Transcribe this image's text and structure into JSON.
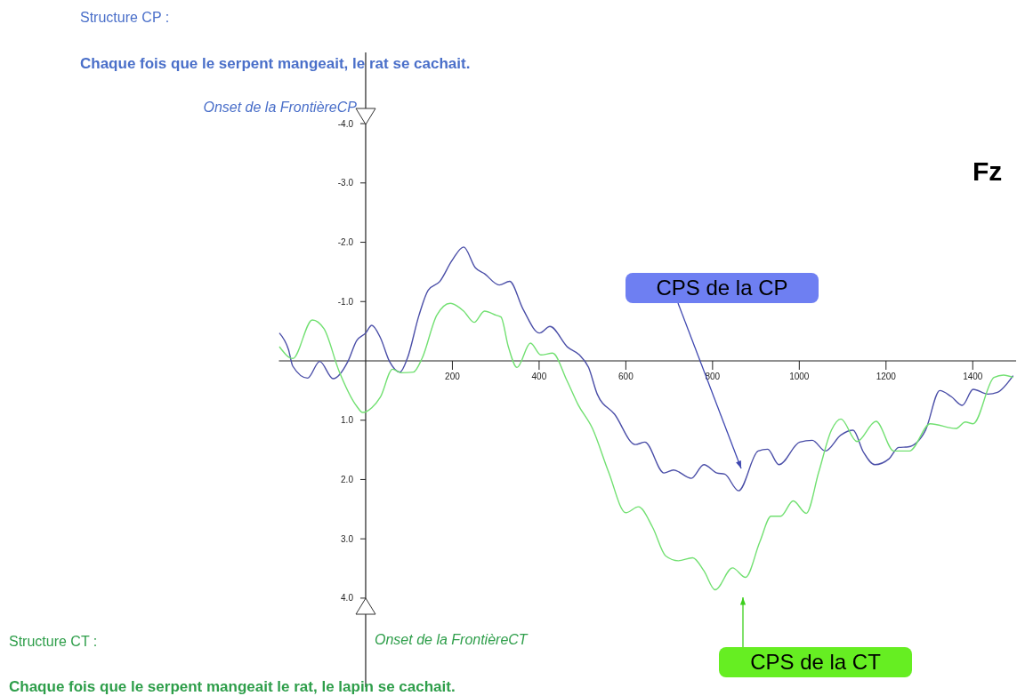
{
  "chart_data": {
    "type": "line",
    "title": "Structure CP :",
    "subtitle": "Chaque fois que le serpent mangeait, le rat se cachait.",
    "xlim": [
      -200,
      1500
    ],
    "xticks": [
      200,
      400,
      600,
      800,
      1000,
      1200,
      1400
    ],
    "ylim": [
      5.5,
      -5.2
    ],
    "yticks": [
      {
        "value": -4,
        "label": "-4.0"
      },
      {
        "value": -3,
        "label": "-3.0"
      },
      {
        "value": -2,
        "label": "-2.0"
      },
      {
        "value": -1,
        "label": "-1.0"
      },
      {
        "value": 1,
        "label": "1.0"
      },
      {
        "value": 2,
        "label": "2.0"
      },
      {
        "value": 3,
        "label": "3.0"
      },
      {
        "value": 4,
        "label": "4.0"
      }
    ],
    "grid": false,
    "series": [
      {
        "color": "#4b4fa8",
        "x": [
          -199,
          -178,
          -168,
          -134,
          -106,
          -75,
          -41,
          -21,
          0,
          14,
          34,
          55,
          79,
          96,
          123,
          144,
          171,
          199,
          226,
          253,
          274,
          308,
          332,
          363,
          401,
          425,
          466,
          493,
          514,
          534,
          574,
          622,
          644,
          688,
          710,
          751,
          780,
          810,
          828,
          860,
          905,
          927,
          953,
          1001,
          1030,
          1060,
          1096,
          1124,
          1148,
          1174,
          1207,
          1229,
          1251,
          1291,
          1324,
          1350,
          1376,
          1401,
          1435,
          1457,
          1493
        ],
        "values": [
          -0.47,
          -0.19,
          0.09,
          0.29,
          0.01,
          0.3,
          0.01,
          -0.34,
          -0.47,
          -0.6,
          -0.39,
          0.01,
          0.19,
          -0.04,
          -0.77,
          -1.19,
          -1.34,
          -1.69,
          -1.92,
          -1.57,
          -1.47,
          -1.28,
          -1.34,
          -0.87,
          -0.47,
          -0.58,
          -0.23,
          -0.1,
          0.11,
          0.56,
          0.9,
          1.41,
          1.37,
          1.89,
          1.84,
          1.98,
          1.75,
          1.89,
          1.91,
          2.19,
          1.52,
          1.49,
          1.75,
          1.37,
          1.34,
          1.52,
          1.25,
          1.17,
          1.54,
          1.75,
          1.65,
          1.46,
          1.45,
          1.17,
          0.5,
          0.6,
          0.75,
          0.48,
          0.56,
          0.53,
          0.25
        ]
      },
      {
        "color": "#72e072",
        "x": [
          -199,
          -168,
          -123,
          -96,
          -62,
          -21,
          -7,
          14,
          34,
          62,
          82,
          110,
          130,
          164,
          195,
          226,
          250,
          274,
          301,
          312,
          329,
          349,
          380,
          404,
          431,
          464,
          490,
          523,
          560,
          600,
          629,
          662,
          692,
          721,
          754,
          780,
          806,
          846,
          876,
          909,
          935,
          957,
          986,
          1016,
          1045,
          1074,
          1096,
          1133,
          1177,
          1218,
          1254,
          1302,
          1361,
          1383,
          1401,
          1449,
          1471,
          1493
        ],
        "values": [
          -0.24,
          -0.04,
          -0.69,
          -0.54,
          0.16,
          0.76,
          0.87,
          0.79,
          0.61,
          0.14,
          0.2,
          0.19,
          -0.04,
          -0.77,
          -0.97,
          -0.84,
          -0.65,
          -0.84,
          -0.77,
          -0.74,
          -0.24,
          0.11,
          -0.3,
          -0.1,
          -0.13,
          0.33,
          0.74,
          1.14,
          1.87,
          2.56,
          2.46,
          2.81,
          3.29,
          3.37,
          3.32,
          3.54,
          3.86,
          3.49,
          3.65,
          3.05,
          2.62,
          2.62,
          2.36,
          2.57,
          1.87,
          1.17,
          0.98,
          1.36,
          1.02,
          1.52,
          1.52,
          1.06,
          1.14,
          1.03,
          1.06,
          0.28,
          0.24,
          0.28
        ]
      }
    ],
    "annotations": [
      "Onset de la FrontièreCP",
      "Onset de la FrontièreCT",
      "CPS de la CP",
      "CPS de la CT",
      "Structure CT :",
      "Chaque fois que le serpent mangeait le rat, le lapin se cachait.",
      "Fz"
    ]
  }
}
